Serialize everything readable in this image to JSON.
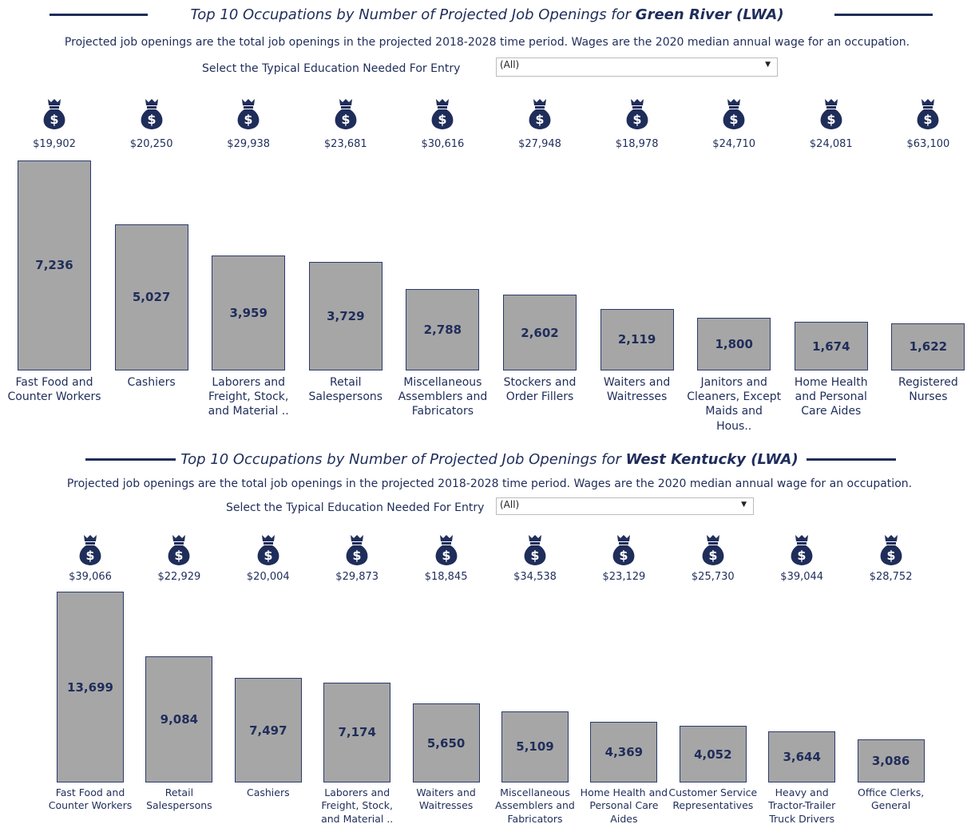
{
  "chart_data": [
    {
      "type": "bar",
      "title": "Top 10 Occupations by Number of Projected Job Openings for",
      "title_region": "Green River (LWA)",
      "subtitle": "Projected job openings are the total job openings in the projected 2018-2028 time period. Wages are the 2020 median annual wage for an occupation.",
      "filter_label": "Select the Typical Education Needed For Entry",
      "filter_value": "(All)",
      "categories": [
        "Fast Food and Counter Workers",
        "Cashiers",
        "Laborers and Freight, Stock, and Material ..",
        "Retail Salespersons",
        "Miscellaneous Assemblers and Fabricators",
        "Stockers and Order Fillers",
        "Waiters and Waitresses",
        "Janitors and Cleaners, Except Maids and Hous..",
        "Home Health and Personal Care Aides",
        "Registered Nurses"
      ],
      "values": [
        7236,
        5027,
        3959,
        3729,
        2788,
        2602,
        2119,
        1800,
        1674,
        1622
      ],
      "value_labels": [
        "7,236",
        "5,027",
        "3,959",
        "3,729",
        "2,788",
        "2,602",
        "2,119",
        "1,800",
        "1,674",
        "1,622"
      ],
      "wages": [
        19902,
        20250,
        29938,
        23681,
        30616,
        27948,
        18978,
        24710,
        24081,
        63100
      ],
      "wage_labels": [
        "$19,902",
        "$20,250",
        "$29,938",
        "$23,681",
        "$30,616",
        "$27,948",
        "$18,978",
        "$24,710",
        "$24,081",
        "$63,100"
      ],
      "color": "#a6a6a6",
      "ylim": [
        0,
        7250
      ]
    },
    {
      "type": "bar",
      "title": "Top 10 Occupations by Number of Projected Job Openings for",
      "title_region": "West Kentucky (LWA)",
      "subtitle": "Projected job openings are the total job openings in the projected 2018-2028 time period. Wages are the 2020 median annual wage for an occupation.",
      "filter_label": "Select the Typical Education Needed For Entry",
      "filter_value": "(All)",
      "categories": [
        "Fast Food and Counter Workers",
        "Retail Salespersons",
        "Cashiers",
        "Laborers and Freight, Stock, and Material ..",
        "Waiters and Waitresses",
        "Miscellaneous Assemblers and Fabricators",
        "Home Health and Personal Care Aides",
        "Customer Service Representatives",
        "Heavy and Tractor-Trailer Truck Drivers",
        "Office Clerks, General"
      ],
      "values": [
        13699,
        9084,
        7497,
        7174,
        5650,
        5109,
        4369,
        4052,
        3644,
        3086
      ],
      "value_labels": [
        "13,699",
        "9,084",
        "7,497",
        "7,174",
        "5,650",
        "5,109",
        "4,369",
        "4,052",
        "3,644",
        "3,086"
      ],
      "wages": [
        39066,
        22929,
        20004,
        29873,
        18845,
        34538,
        23129,
        25730,
        39044,
        28752
      ],
      "wage_labels": [
        "$39,066",
        "$22,929",
        "$20,004",
        "$29,873",
        "$18,845",
        "$34,538",
        "$23,129",
        "$25,730",
        "$39,044",
        "$28,752"
      ],
      "color": "#a6a6a6",
      "ylim": [
        0,
        13700
      ]
    }
  ]
}
